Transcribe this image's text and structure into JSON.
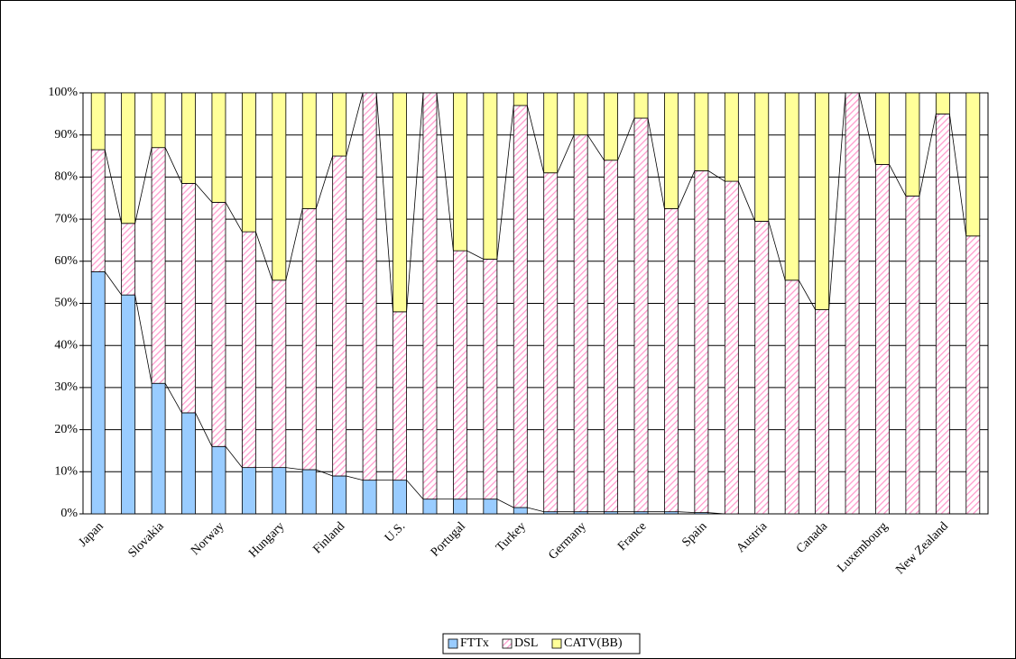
{
  "chart_data": {
    "type": "stacked_bar",
    "categories": [
      "Japan",
      null,
      "Slovakia",
      null,
      "Norway",
      null,
      "Hungary",
      null,
      "Finland",
      null,
      "U.S.",
      null,
      "Portugal",
      null,
      "Turkey",
      null,
      "Germany",
      null,
      "France",
      null,
      "Spain",
      null,
      "Austria",
      null,
      "Canada",
      null,
      "Luxembourg",
      null,
      "New Zealand",
      null
    ],
    "series": [
      {
        "name": "FTTx",
        "color": "#99ccff",
        "values": [
          57.5,
          52,
          31,
          24,
          16,
          11,
          11,
          10.5,
          9,
          8,
          8,
          3.5,
          3.5,
          3.5,
          1.5,
          0.5,
          0.5,
          0.5,
          0.5,
          0.5,
          0.3,
          0,
          0,
          0,
          0,
          0,
          0,
          0,
          0,
          0
        ]
      },
      {
        "name": "DSL",
        "color": "#ff99cc",
        "values": [
          29,
          17,
          56,
          54.5,
          58,
          56,
          44.5,
          62,
          76,
          92,
          40,
          96.5,
          59,
          57,
          95.5,
          80.5,
          89.5,
          83.5,
          93.5,
          72,
          81.2,
          79,
          69.5,
          55.5,
          48.5,
          100,
          83,
          75.5,
          95,
          66
        ]
      },
      {
        "name": "CATV(BB)",
        "color": "#ffff99",
        "values": [
          13.5,
          31,
          13,
          21.5,
          26,
          33,
          44.5,
          27.5,
          15,
          0,
          52,
          0,
          37.5,
          39.5,
          3,
          19,
          10,
          16,
          6,
          27.5,
          18.5,
          21,
          30.5,
          44.5,
          51.5,
          0,
          17,
          24.5,
          5,
          34
        ]
      }
    ],
    "ylim": [
      0,
      100
    ],
    "yticks": [
      {
        "value": 0,
        "label": "0%"
      },
      {
        "value": 10,
        "label": "10%"
      },
      {
        "value": 20,
        "label": "20%"
      },
      {
        "value": 30,
        "label": "30%"
      },
      {
        "value": 40,
        "label": "40%"
      },
      {
        "value": 50,
        "label": "50%"
      },
      {
        "value": 60,
        "label": "60%"
      },
      {
        "value": 70,
        "label": "70%"
      },
      {
        "value": 80,
        "label": "80%"
      },
      {
        "value": 90,
        "label": "90%"
      },
      {
        "value": 100,
        "label": "100%"
      }
    ],
    "grid": true
  }
}
